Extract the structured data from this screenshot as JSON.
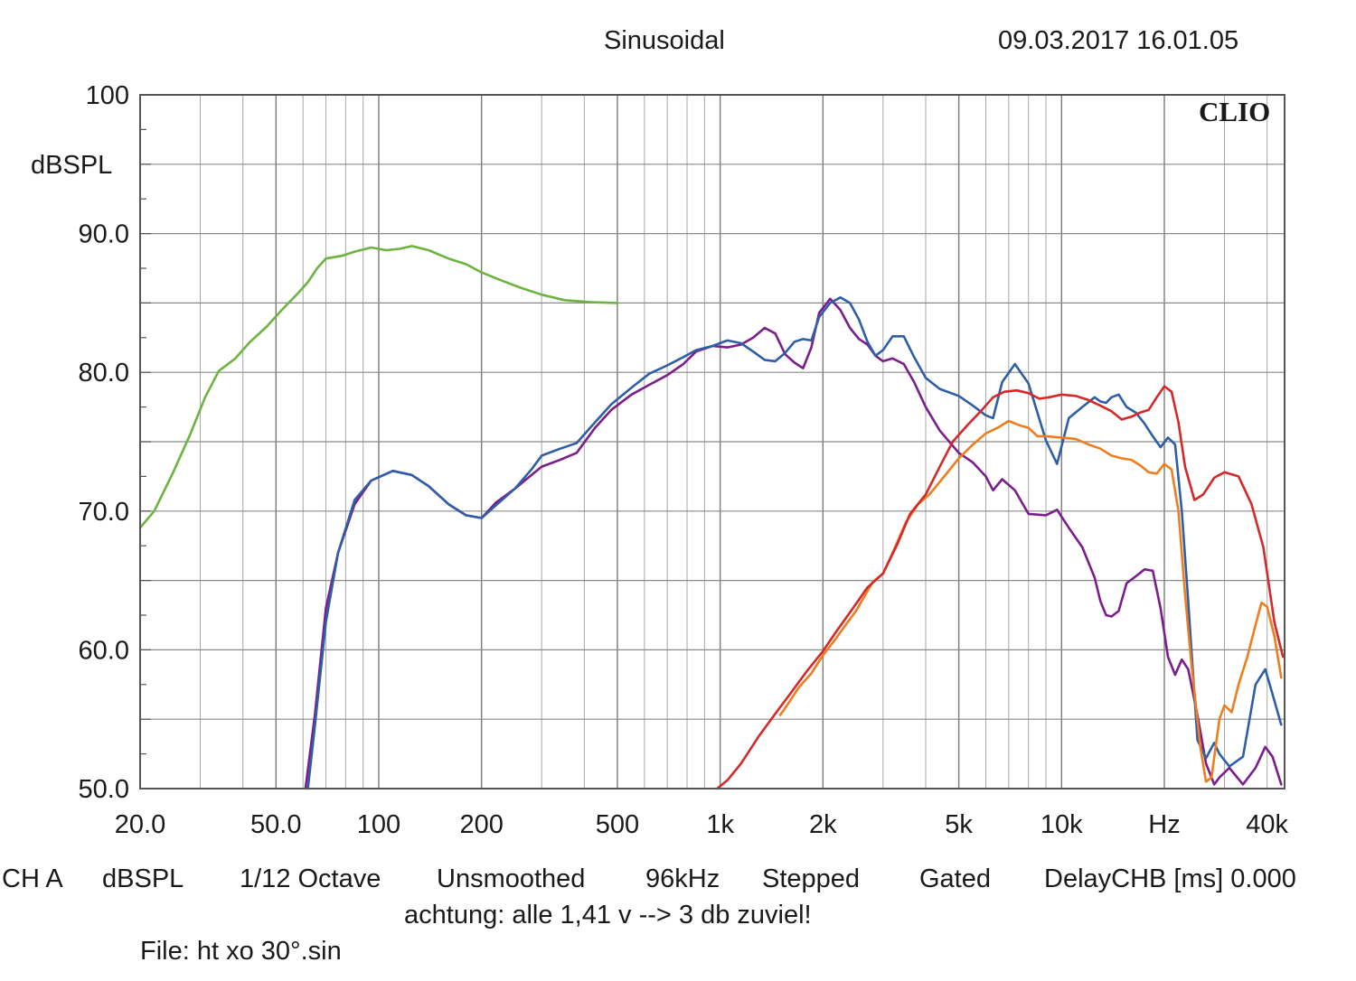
{
  "header": {
    "mode": "Sinusoidal",
    "datetime": "09.03.2017 16.01.05",
    "brand": "CLIO"
  },
  "footer": {
    "settings": [
      "CH A",
      "dBSPL",
      "1/12 Octave",
      "Unsmoothed",
      "96kHz",
      "Stepped",
      "Gated",
      "DelayCHB [ms] 0.000"
    ],
    "note": "achtung: alle 1,41 v --> 3 db zuviel!",
    "file": "File: ht xo 30°.sin"
  },
  "chart_data": {
    "type": "line",
    "title": "Sinusoidal",
    "xlabel": "Hz",
    "ylabel": "dBSPL",
    "x_scale": "log",
    "xlim": [
      20,
      45000
    ],
    "ylim": [
      50,
      100
    ],
    "grid": true,
    "x_ticks": [
      {
        "value": 20,
        "label": "20.0"
      },
      {
        "value": 50,
        "label": "50.0"
      },
      {
        "value": 100,
        "label": "100"
      },
      {
        "value": 200,
        "label": "200"
      },
      {
        "value": 500,
        "label": "500"
      },
      {
        "value": 1000,
        "label": "1k"
      },
      {
        "value": 2000,
        "label": "2k"
      },
      {
        "value": 5000,
        "label": "5k"
      },
      {
        "value": 10000,
        "label": "10k"
      },
      {
        "value": 20000,
        "label": "Hz"
      },
      {
        "value": 40000,
        "label": "40k"
      }
    ],
    "y_ticks": [
      {
        "value": 100,
        "label": "100"
      },
      {
        "value": 90,
        "label": "90.0"
      },
      {
        "value": 80,
        "label": "80.0"
      },
      {
        "value": 70,
        "label": "70.0"
      },
      {
        "value": 60,
        "label": "60.0"
      },
      {
        "value": 50,
        "label": "50.0"
      }
    ],
    "series": [
      {
        "color": "#6db33f",
        "points": [
          [
            20,
            68.8
          ],
          [
            22,
            70
          ],
          [
            25,
            72.8
          ],
          [
            28,
            75.5
          ],
          [
            31,
            78.2
          ],
          [
            34,
            80.1
          ],
          [
            38,
            81
          ],
          [
            42,
            82.2
          ],
          [
            47,
            83.3
          ],
          [
            52,
            84.5
          ],
          [
            58,
            85.7
          ],
          [
            62,
            86.5
          ],
          [
            66,
            87.5
          ],
          [
            70,
            88.2
          ],
          [
            78,
            88.4
          ],
          [
            85,
            88.7
          ],
          [
            95,
            89
          ],
          [
            105,
            88.8
          ],
          [
            115,
            88.9
          ],
          [
            125,
            89.1
          ],
          [
            140,
            88.8
          ],
          [
            160,
            88.2
          ],
          [
            180,
            87.8
          ],
          [
            200,
            87.2
          ],
          [
            230,
            86.6
          ],
          [
            260,
            86.1
          ],
          [
            300,
            85.6
          ],
          [
            350,
            85.2
          ],
          [
            420,
            85.05
          ],
          [
            500,
            85
          ]
        ]
      },
      {
        "color": "#7b1e8c",
        "points": [
          [
            61,
            50
          ],
          [
            65,
            55.3
          ],
          [
            70,
            63
          ],
          [
            76,
            67
          ],
          [
            85,
            70.5
          ],
          [
            95,
            72.2
          ],
          [
            110,
            72.9
          ],
          [
            125,
            72.6
          ],
          [
            140,
            71.8
          ],
          [
            160,
            70.5
          ],
          [
            180,
            69.7
          ],
          [
            200,
            69.5
          ],
          [
            220,
            70.6
          ],
          [
            250,
            71.6
          ],
          [
            280,
            72.6
          ],
          [
            300,
            73.2
          ],
          [
            340,
            73.7
          ],
          [
            380,
            74.2
          ],
          [
            430,
            76
          ],
          [
            480,
            77.3
          ],
          [
            550,
            78.4
          ],
          [
            620,
            79.1
          ],
          [
            700,
            79.8
          ],
          [
            780,
            80.6
          ],
          [
            850,
            81.5
          ],
          [
            950,
            81.9
          ],
          [
            1050,
            81.8
          ],
          [
            1150,
            82
          ],
          [
            1250,
            82.5
          ],
          [
            1350,
            83.2
          ],
          [
            1450,
            82.8
          ],
          [
            1550,
            81.3
          ],
          [
            1650,
            80.7
          ],
          [
            1750,
            80.3
          ],
          [
            1850,
            81.8
          ],
          [
            1950,
            84.3
          ],
          [
            2100,
            85.3
          ],
          [
            2250,
            84.5
          ],
          [
            2400,
            83.2
          ],
          [
            2550,
            82.4
          ],
          [
            2700,
            82
          ],
          [
            2850,
            81.2
          ],
          [
            3000,
            80.8
          ],
          [
            3200,
            81
          ],
          [
            3450,
            80.6
          ],
          [
            3700,
            79.3
          ],
          [
            4000,
            77.5
          ],
          [
            4400,
            75.8
          ],
          [
            5000,
            74.2
          ],
          [
            5500,
            73.5
          ],
          [
            6000,
            72.5
          ],
          [
            6300,
            71.5
          ],
          [
            6700,
            72.3
          ],
          [
            7300,
            71.5
          ],
          [
            8000,
            69.8
          ],
          [
            9000,
            69.7
          ],
          [
            9700,
            70.1
          ],
          [
            10500,
            68.8
          ],
          [
            11500,
            67.4
          ],
          [
            12500,
            65.2
          ],
          [
            13000,
            63.5
          ],
          [
            13500,
            62.5
          ],
          [
            14000,
            62.4
          ],
          [
            14700,
            62.8
          ],
          [
            15500,
            64.8
          ],
          [
            16500,
            65.3
          ],
          [
            17500,
            65.8
          ],
          [
            18500,
            65.7
          ],
          [
            19500,
            63
          ],
          [
            20500,
            59.5
          ],
          [
            21500,
            58.2
          ],
          [
            22500,
            59.3
          ],
          [
            23500,
            58.6
          ],
          [
            25000,
            55.3
          ],
          [
            26500,
            51.8
          ],
          [
            28000,
            50.3
          ],
          [
            29000,
            50.8
          ],
          [
            31000,
            51.5
          ],
          [
            34000,
            50.3
          ],
          [
            37000,
            51.5
          ],
          [
            39500,
            53
          ],
          [
            41500,
            52.3
          ],
          [
            44000,
            50.3
          ]
        ]
      },
      {
        "color": "#2f5ea8",
        "points": [
          [
            62,
            50
          ],
          [
            65,
            54.5
          ],
          [
            70,
            62
          ],
          [
            76,
            67
          ],
          [
            85,
            70.8
          ],
          [
            95,
            72.2
          ],
          [
            110,
            72.9
          ],
          [
            125,
            72.6
          ],
          [
            140,
            71.8
          ],
          [
            160,
            70.5
          ],
          [
            180,
            69.7
          ],
          [
            200,
            69.5
          ],
          [
            220,
            70.4
          ],
          [
            250,
            71.6
          ],
          [
            280,
            73
          ],
          [
            300,
            74
          ],
          [
            340,
            74.5
          ],
          [
            380,
            74.9
          ],
          [
            430,
            76.4
          ],
          [
            480,
            77.7
          ],
          [
            550,
            78.9
          ],
          [
            620,
            79.9
          ],
          [
            700,
            80.5
          ],
          [
            780,
            81.1
          ],
          [
            850,
            81.6
          ],
          [
            950,
            81.9
          ],
          [
            1050,
            82.3
          ],
          [
            1150,
            82.1
          ],
          [
            1250,
            81.5
          ],
          [
            1350,
            80.9
          ],
          [
            1450,
            80.8
          ],
          [
            1550,
            81.4
          ],
          [
            1650,
            82.2
          ],
          [
            1750,
            82.4
          ],
          [
            1850,
            82.3
          ],
          [
            1950,
            84
          ],
          [
            2100,
            85
          ],
          [
            2250,
            85.4
          ],
          [
            2400,
            85
          ],
          [
            2550,
            83.8
          ],
          [
            2700,
            82.2
          ],
          [
            2850,
            81.2
          ],
          [
            3000,
            81.6
          ],
          [
            3200,
            82.6
          ],
          [
            3450,
            82.6
          ],
          [
            3700,
            81.1
          ],
          [
            4000,
            79.6
          ],
          [
            4400,
            78.8
          ],
          [
            5000,
            78.3
          ],
          [
            5500,
            77.6
          ],
          [
            6000,
            76.9
          ],
          [
            6300,
            76.7
          ],
          [
            6700,
            79.3
          ],
          [
            7300,
            80.6
          ],
          [
            8000,
            79.2
          ],
          [
            9000,
            75.1
          ],
          [
            9700,
            73.4
          ],
          [
            10500,
            76.7
          ],
          [
            11500,
            77.5
          ],
          [
            12500,
            78.2
          ],
          [
            13000,
            77.9
          ],
          [
            13500,
            77.8
          ],
          [
            14000,
            78.2
          ],
          [
            14700,
            78.4
          ],
          [
            15500,
            77.5
          ],
          [
            16500,
            77.1
          ],
          [
            17500,
            76.3
          ],
          [
            18500,
            75.4
          ],
          [
            19500,
            74.6
          ],
          [
            20500,
            75.3
          ],
          [
            21500,
            74.8
          ],
          [
            22500,
            70
          ],
          [
            23500,
            63.5
          ],
          [
            25000,
            53.5
          ],
          [
            26500,
            52.2
          ],
          [
            28000,
            53.3
          ],
          [
            29000,
            52.5
          ],
          [
            31000,
            51.6
          ],
          [
            34000,
            52.3
          ],
          [
            37000,
            57.5
          ],
          [
            39500,
            58.6
          ],
          [
            41500,
            56.8
          ],
          [
            44000,
            54.6
          ]
        ]
      },
      {
        "color": "#ee7d1e",
        "points": [
          [
            1500,
            55.3
          ],
          [
            1600,
            56.3
          ],
          [
            1700,
            57.3
          ],
          [
            1850,
            58.3
          ],
          [
            2000,
            59.6
          ],
          [
            2150,
            60.6
          ],
          [
            2300,
            61.6
          ],
          [
            2500,
            62.8
          ],
          [
            2800,
            64.9
          ],
          [
            3000,
            65.5
          ],
          [
            3200,
            67
          ],
          [
            3500,
            69.2
          ],
          [
            3800,
            70.5
          ],
          [
            4100,
            71.2
          ],
          [
            4500,
            72.4
          ],
          [
            5000,
            73.8
          ],
          [
            5500,
            74.8
          ],
          [
            6000,
            75.6
          ],
          [
            6500,
            76
          ],
          [
            7000,
            76.5
          ],
          [
            7500,
            76.2
          ],
          [
            8000,
            76
          ],
          [
            8500,
            75.4
          ],
          [
            9000,
            75.4
          ],
          [
            10000,
            75.3
          ],
          [
            11000,
            75.2
          ],
          [
            12000,
            74.8
          ],
          [
            13000,
            74.5
          ],
          [
            14000,
            74
          ],
          [
            15000,
            73.8
          ],
          [
            16000,
            73.7
          ],
          [
            17000,
            73.3
          ],
          [
            18000,
            72.8
          ],
          [
            19000,
            72.7
          ],
          [
            20000,
            73.4
          ],
          [
            21000,
            73
          ],
          [
            22000,
            70
          ],
          [
            23000,
            64
          ],
          [
            24000,
            59
          ],
          [
            25500,
            53
          ],
          [
            26500,
            50.5
          ],
          [
            27500,
            50.8
          ],
          [
            29000,
            55
          ],
          [
            30000,
            56
          ],
          [
            31500,
            55.5
          ],
          [
            33000,
            57.5
          ],
          [
            35000,
            59.5
          ],
          [
            37000,
            61.8
          ],
          [
            38500,
            63.4
          ],
          [
            40000,
            63.1
          ],
          [
            42000,
            61
          ],
          [
            44000,
            58
          ]
        ]
      },
      {
        "color": "#d62828",
        "points": [
          [
            980,
            50
          ],
          [
            1050,
            50.6
          ],
          [
            1150,
            51.8
          ],
          [
            1300,
            53.8
          ],
          [
            1450,
            55.4
          ],
          [
            1600,
            56.8
          ],
          [
            1800,
            58.5
          ],
          [
            2000,
            59.9
          ],
          [
            2200,
            61.4
          ],
          [
            2450,
            63
          ],
          [
            2700,
            64.5
          ],
          [
            3000,
            65.5
          ],
          [
            3300,
            67.6
          ],
          [
            3600,
            69.8
          ],
          [
            4000,
            71.2
          ],
          [
            4400,
            73.2
          ],
          [
            4800,
            75
          ],
          [
            5300,
            76.2
          ],
          [
            5800,
            77.2
          ],
          [
            6300,
            78.2
          ],
          [
            6800,
            78.6
          ],
          [
            7400,
            78.7
          ],
          [
            8000,
            78.5
          ],
          [
            8600,
            78.1
          ],
          [
            9200,
            78.2
          ],
          [
            10000,
            78.4
          ],
          [
            11000,
            78.3
          ],
          [
            12000,
            78
          ],
          [
            13000,
            77.6
          ],
          [
            14000,
            77.2
          ],
          [
            15000,
            76.6
          ],
          [
            16000,
            76.8
          ],
          [
            17000,
            77.1
          ],
          [
            18000,
            77.3
          ],
          [
            19000,
            78.2
          ],
          [
            20000,
            79
          ],
          [
            21000,
            78.6
          ],
          [
            22000,
            76.4
          ],
          [
            23000,
            73.2
          ],
          [
            24500,
            70.8
          ],
          [
            26000,
            71.2
          ],
          [
            28000,
            72.4
          ],
          [
            30000,
            72.8
          ],
          [
            33000,
            72.5
          ],
          [
            36000,
            70.5
          ],
          [
            39000,
            67.4
          ],
          [
            42000,
            62
          ],
          [
            44500,
            59.5
          ]
        ]
      }
    ]
  }
}
